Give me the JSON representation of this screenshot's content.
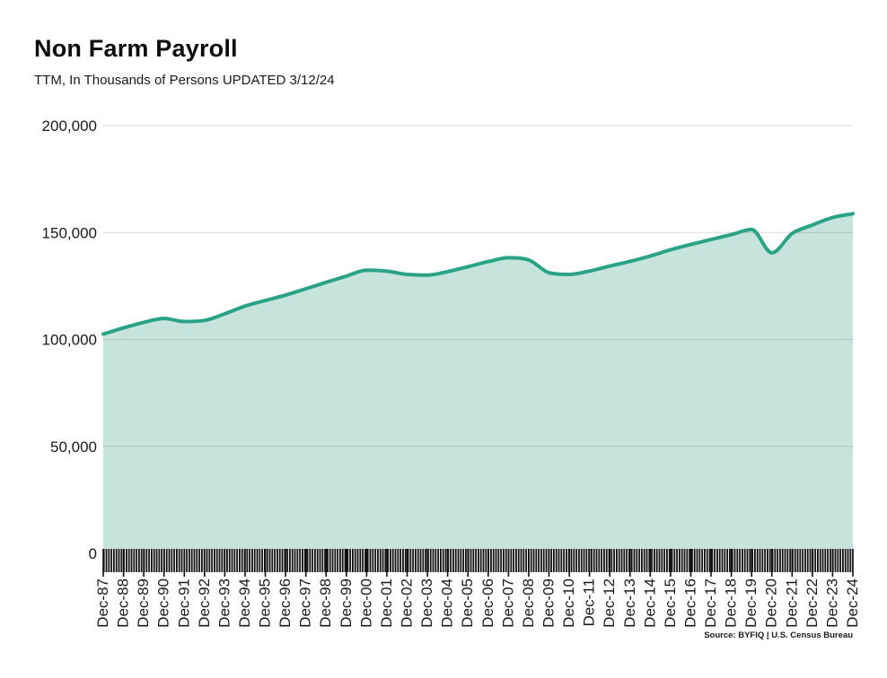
{
  "header": {
    "title": "Non Farm Payroll",
    "subtitle": "TTM, In Thousands of Persons UPDATED 3/12/24"
  },
  "footer": {
    "source": "Source: BYFIQ | U.S. Census Bureau"
  },
  "chart_data": {
    "type": "area",
    "title": "Non Farm Payroll",
    "subtitle": "TTM, In Thousands of Persons UPDATED 3/12/24",
    "xlabel": "",
    "ylabel": "In Thousands of Persons",
    "categories": [
      "Dec-87",
      "Dec-88",
      "Dec-89",
      "Dec-90",
      "Dec-91",
      "Dec-92",
      "Dec-93",
      "Dec-94",
      "Dec-95",
      "Dec-96",
      "Dec-97",
      "Dec-98",
      "Dec-99",
      "Dec-00",
      "Dec-01",
      "Dec-02",
      "Dec-03",
      "Dec-04",
      "Dec-05",
      "Dec-06",
      "Dec-07",
      "Dec-08",
      "Dec-09",
      "Dec-10",
      "Dec-11",
      "Dec-12",
      "Dec-13",
      "Dec-14",
      "Dec-15",
      "Dec-16",
      "Dec-17",
      "Dec-18",
      "Dec-19",
      "Dec-20",
      "Dec-21",
      "Dec-22",
      "Dec-23",
      "Dec-24"
    ],
    "values": [
      102500,
      105400,
      108000,
      109800,
      108400,
      108900,
      112000,
      115600,
      118200,
      120700,
      123700,
      126700,
      129600,
      132400,
      131900,
      130400,
      130100,
      131700,
      134000,
      136400,
      138200,
      137200,
      131200,
      130400,
      132000,
      134300,
      136500,
      139000,
      141900,
      144400,
      146700,
      149000,
      151400,
      140500,
      149500,
      153500,
      157000,
      158800
    ],
    "ylim": [
      0,
      200000
    ],
    "yticks": [
      0,
      50000,
      100000,
      150000,
      200000
    ],
    "ytick_labels": [
      "0",
      "50,000",
      "100,000",
      "150,000",
      "200,000"
    ],
    "grid": true,
    "legend": false,
    "line_color": "#29a286",
    "fill_color": "#c6e4dc",
    "gridline_color": "rgba(0,0,0,0.15)",
    "tick_band": "monthly-ticks",
    "source": "Source: BYFIQ | U.S. Census Bureau"
  }
}
